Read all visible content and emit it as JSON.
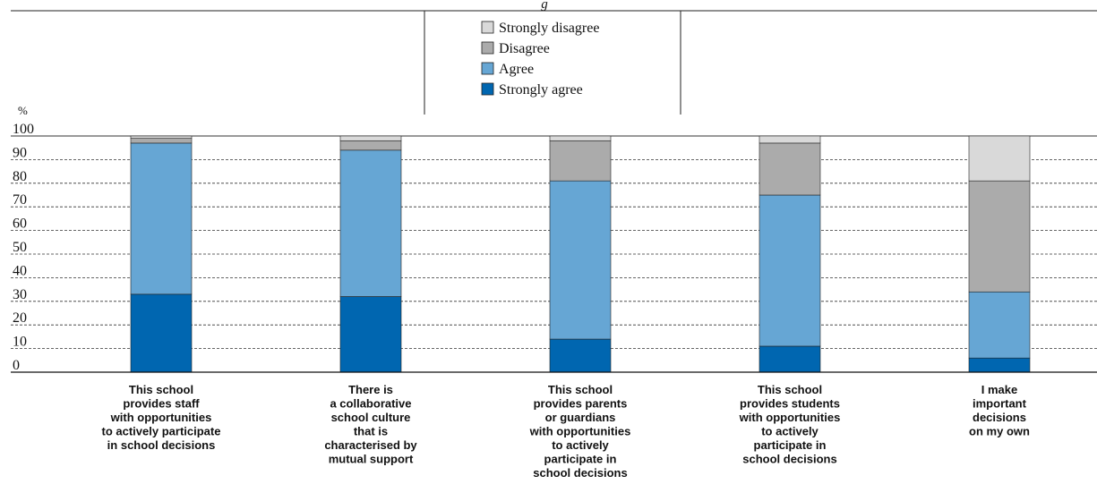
{
  "header_fragment": "g",
  "chart_data": {
    "type": "bar",
    "stacked": true,
    "ylabel": "%",
    "ylim": [
      0,
      100
    ],
    "yticks": [
      0,
      10,
      20,
      30,
      40,
      50,
      60,
      70,
      80,
      90,
      100
    ],
    "grid": true,
    "legend_position": "top-center",
    "categories": [
      [
        "This school",
        "provides staff",
        "with opportunities",
        "to actively participate",
        "in school decisions"
      ],
      [
        "There is",
        "a collaborative",
        "school culture",
        "that is",
        "characterised by",
        "mutual support"
      ],
      [
        "This school",
        "provides parents",
        "or guardians",
        "with opportunities",
        "to actively",
        "participate in",
        "school decisions"
      ],
      [
        "This school",
        "provides students",
        "with opportunities",
        "to actively",
        "participate in",
        "school decisions"
      ],
      [
        "I make",
        "important",
        "decisions",
        "on my own"
      ]
    ],
    "series": [
      {
        "name": "Strongly agree",
        "color": "#0066b0",
        "values": [
          33,
          32,
          14,
          11,
          6
        ]
      },
      {
        "name": "Agree",
        "color": "#66a6d4",
        "values": [
          64,
          62,
          67,
          64,
          28
        ]
      },
      {
        "name": "Disagree",
        "color": "#ababab",
        "values": [
          2,
          4,
          17,
          22,
          47
        ]
      },
      {
        "name": "Strongly disagree",
        "color": "#d9d9d9",
        "values": [
          1,
          2,
          2,
          3,
          19
        ]
      }
    ],
    "legend_order": [
      "Strongly disagree",
      "Disagree",
      "Agree",
      "Strongly agree"
    ]
  }
}
